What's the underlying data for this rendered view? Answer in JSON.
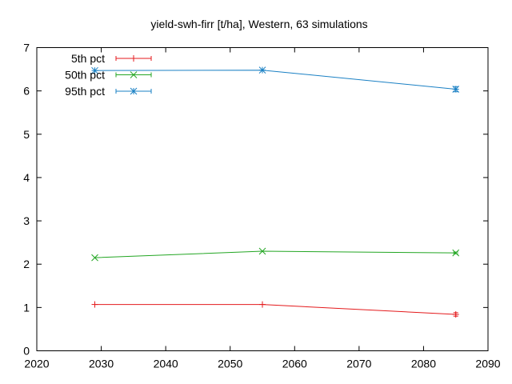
{
  "chart_data": {
    "type": "line",
    "title": "yield-swh-firr [t/ha], Western, 63 simulations",
    "xlabel": "",
    "ylabel": "",
    "xlim": [
      2020,
      2090
    ],
    "ylim": [
      0,
      7
    ],
    "x_ticks": [
      "2020",
      "2030",
      "2040",
      "2050",
      "2060",
      "2070",
      "2080",
      "2090"
    ],
    "y_ticks": [
      "0",
      "1",
      "2",
      "3",
      "4",
      "5",
      "6",
      "7"
    ],
    "grid": false,
    "legend_position": "top-left",
    "series": [
      {
        "name": "5th pct",
        "color": "#e41a1c",
        "marker": "plus",
        "x": [
          2029,
          2055,
          2085
        ],
        "y": [
          1.07,
          1.07,
          0.84
        ],
        "err": [
          0.0,
          0.0,
          0.04
        ]
      },
      {
        "name": "50th pct",
        "color": "#23a623",
        "marker": "cross",
        "x": [
          2029,
          2055,
          2085
        ],
        "y": [
          2.15,
          2.3,
          2.26
        ],
        "err": [
          0.0,
          0.0,
          0.02
        ]
      },
      {
        "name": "95th pct",
        "color": "#1a80c4",
        "marker": "star",
        "x": [
          2029,
          2055,
          2085
        ],
        "y": [
          6.47,
          6.48,
          6.04
        ],
        "err": [
          0.0,
          0.0,
          0.06
        ]
      }
    ]
  }
}
